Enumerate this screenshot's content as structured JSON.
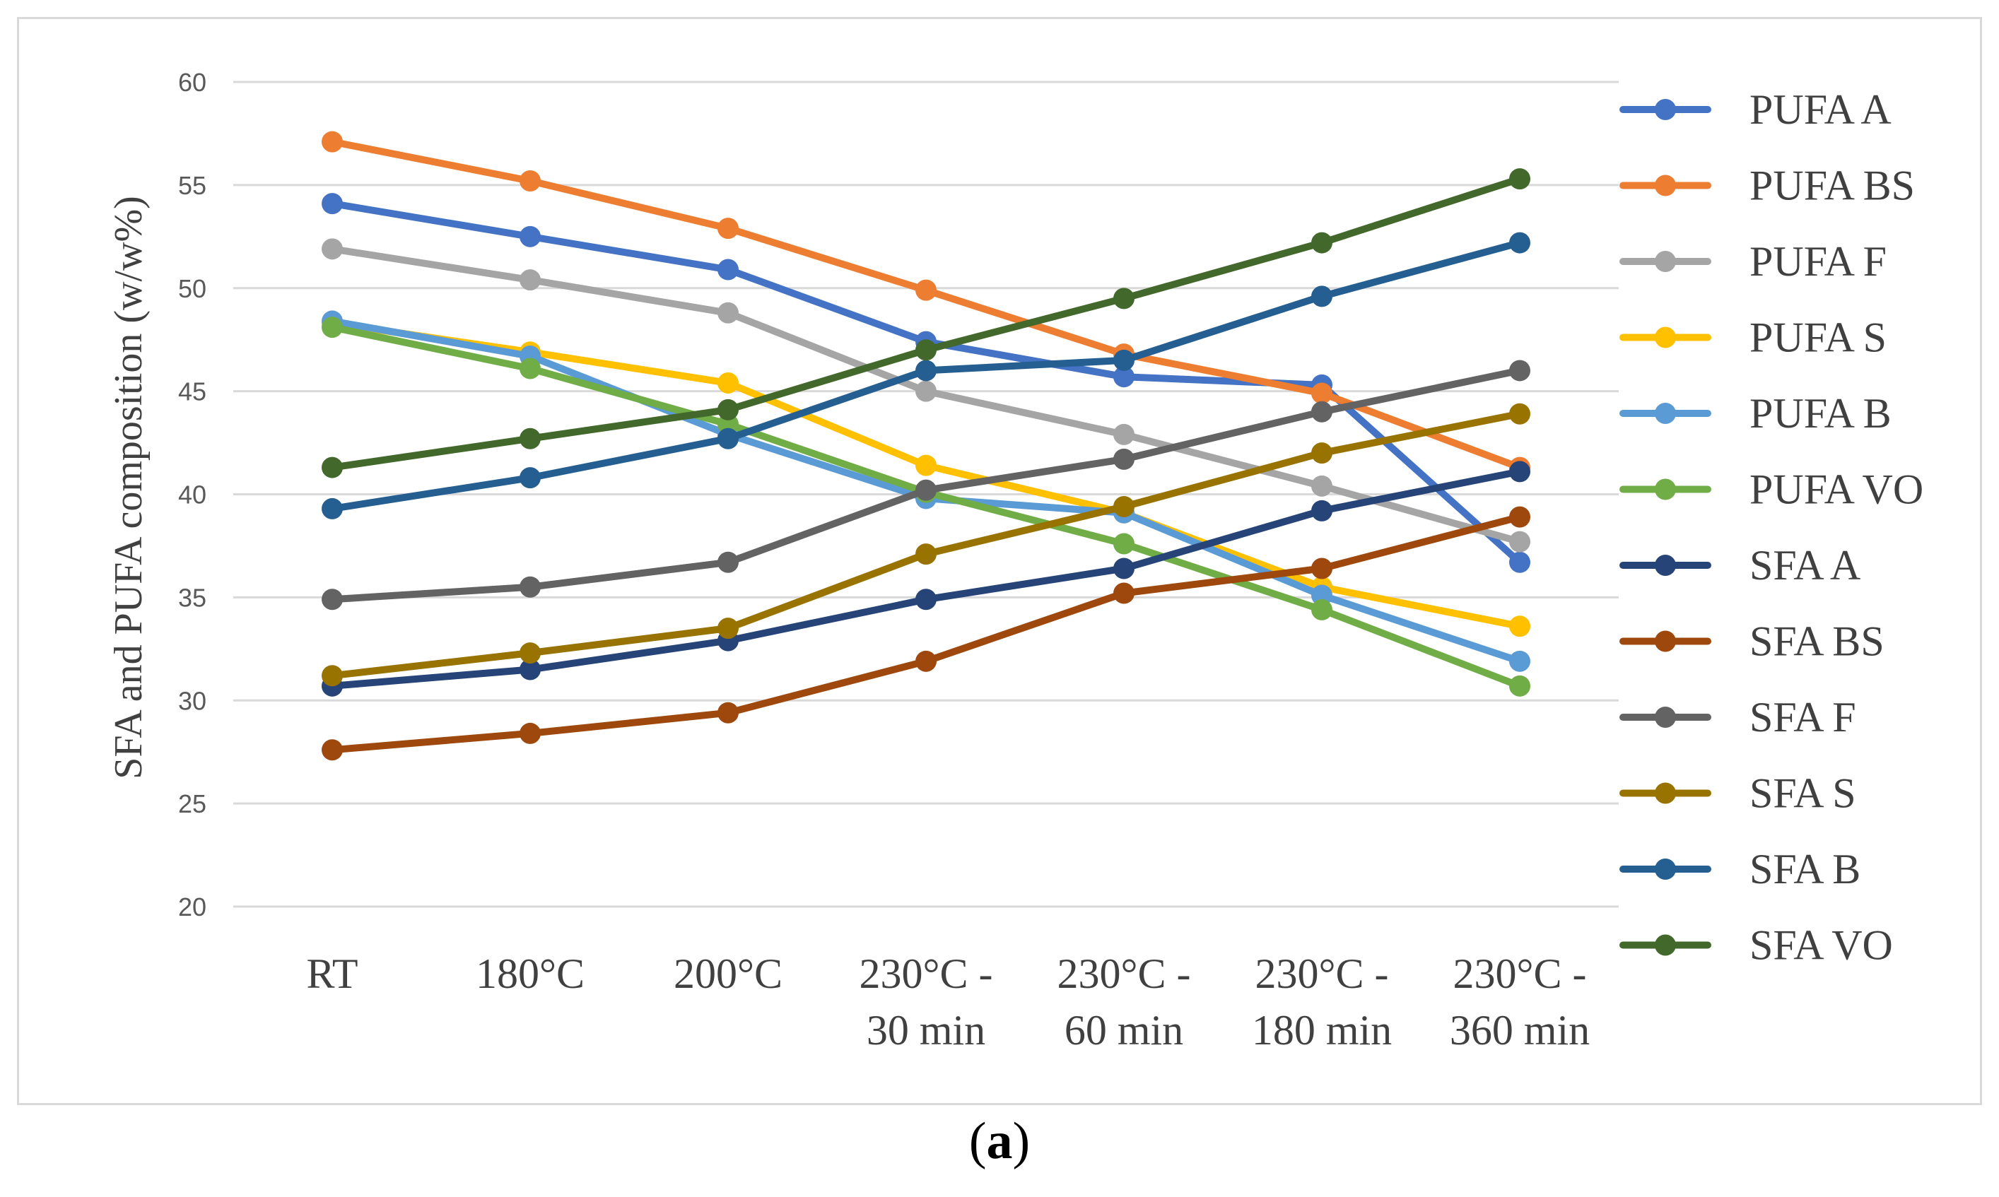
{
  "chart_data": {
    "type": "line",
    "title": "",
    "xlabel": "",
    "ylabel": "SFA and PUFA  composition (w/w%)",
    "ylim": [
      20,
      60
    ],
    "yticks": [
      20,
      25,
      30,
      35,
      40,
      45,
      50,
      55,
      60
    ],
    "grid": true,
    "legend_position": "right",
    "categories": [
      [
        "RT"
      ],
      [
        "180°C"
      ],
      [
        "200°C"
      ],
      [
        "230°C -",
        "30 min"
      ],
      [
        "230°C -",
        "60 min"
      ],
      [
        "230°C -",
        "180 min"
      ],
      [
        "230°C -",
        "360 min"
      ]
    ],
    "series": [
      {
        "name": "PUFA A",
        "color": "#4472C4",
        "values": [
          54.1,
          52.5,
          50.9,
          47.4,
          45.7,
          45.3,
          36.7
        ]
      },
      {
        "name": "PUFA BS",
        "color": "#ED7D31",
        "values": [
          57.1,
          55.2,
          52.9,
          49.9,
          46.8,
          44.9,
          41.3
        ]
      },
      {
        "name": "PUFA F",
        "color": "#A5A5A5",
        "values": [
          51.9,
          50.4,
          48.8,
          45.0,
          42.9,
          40.4,
          37.7
        ]
      },
      {
        "name": "PUFA S",
        "color": "#FFC000",
        "values": [
          48.3,
          46.9,
          45.4,
          41.4,
          39.1,
          35.5,
          33.6
        ]
      },
      {
        "name": "PUFA B",
        "color": "#5B9BD5",
        "values": [
          48.4,
          46.7,
          42.9,
          39.8,
          39.1,
          35.1,
          31.9
        ]
      },
      {
        "name": "PUFA VO",
        "color": "#70AD47",
        "values": [
          48.1,
          46.1,
          43.4,
          40.1,
          37.6,
          34.4,
          30.7
        ]
      },
      {
        "name": "SFA A",
        "color": "#264478",
        "values": [
          30.7,
          31.5,
          32.9,
          34.9,
          36.4,
          39.2,
          41.1
        ]
      },
      {
        "name": "SFA BS",
        "color": "#9E480E",
        "values": [
          27.6,
          28.4,
          29.4,
          31.9,
          35.2,
          36.4,
          38.9
        ]
      },
      {
        "name": "SFA F",
        "color": "#636363",
        "values": [
          34.9,
          35.5,
          36.7,
          40.2,
          41.7,
          44.0,
          46.0
        ]
      },
      {
        "name": "SFA S",
        "color": "#997300",
        "values": [
          31.2,
          32.3,
          33.5,
          37.1,
          39.4,
          42.0,
          43.9
        ]
      },
      {
        "name": "SFA B",
        "color": "#255E91",
        "values": [
          39.3,
          40.8,
          42.7,
          46.0,
          46.5,
          49.6,
          52.2
        ]
      },
      {
        "name": "SFA VO",
        "color": "#43682B",
        "values": [
          41.3,
          42.7,
          44.1,
          47.0,
          49.5,
          52.2,
          55.3
        ]
      }
    ]
  },
  "caption": {
    "open": "(",
    "letter": "a",
    "close": ")"
  }
}
